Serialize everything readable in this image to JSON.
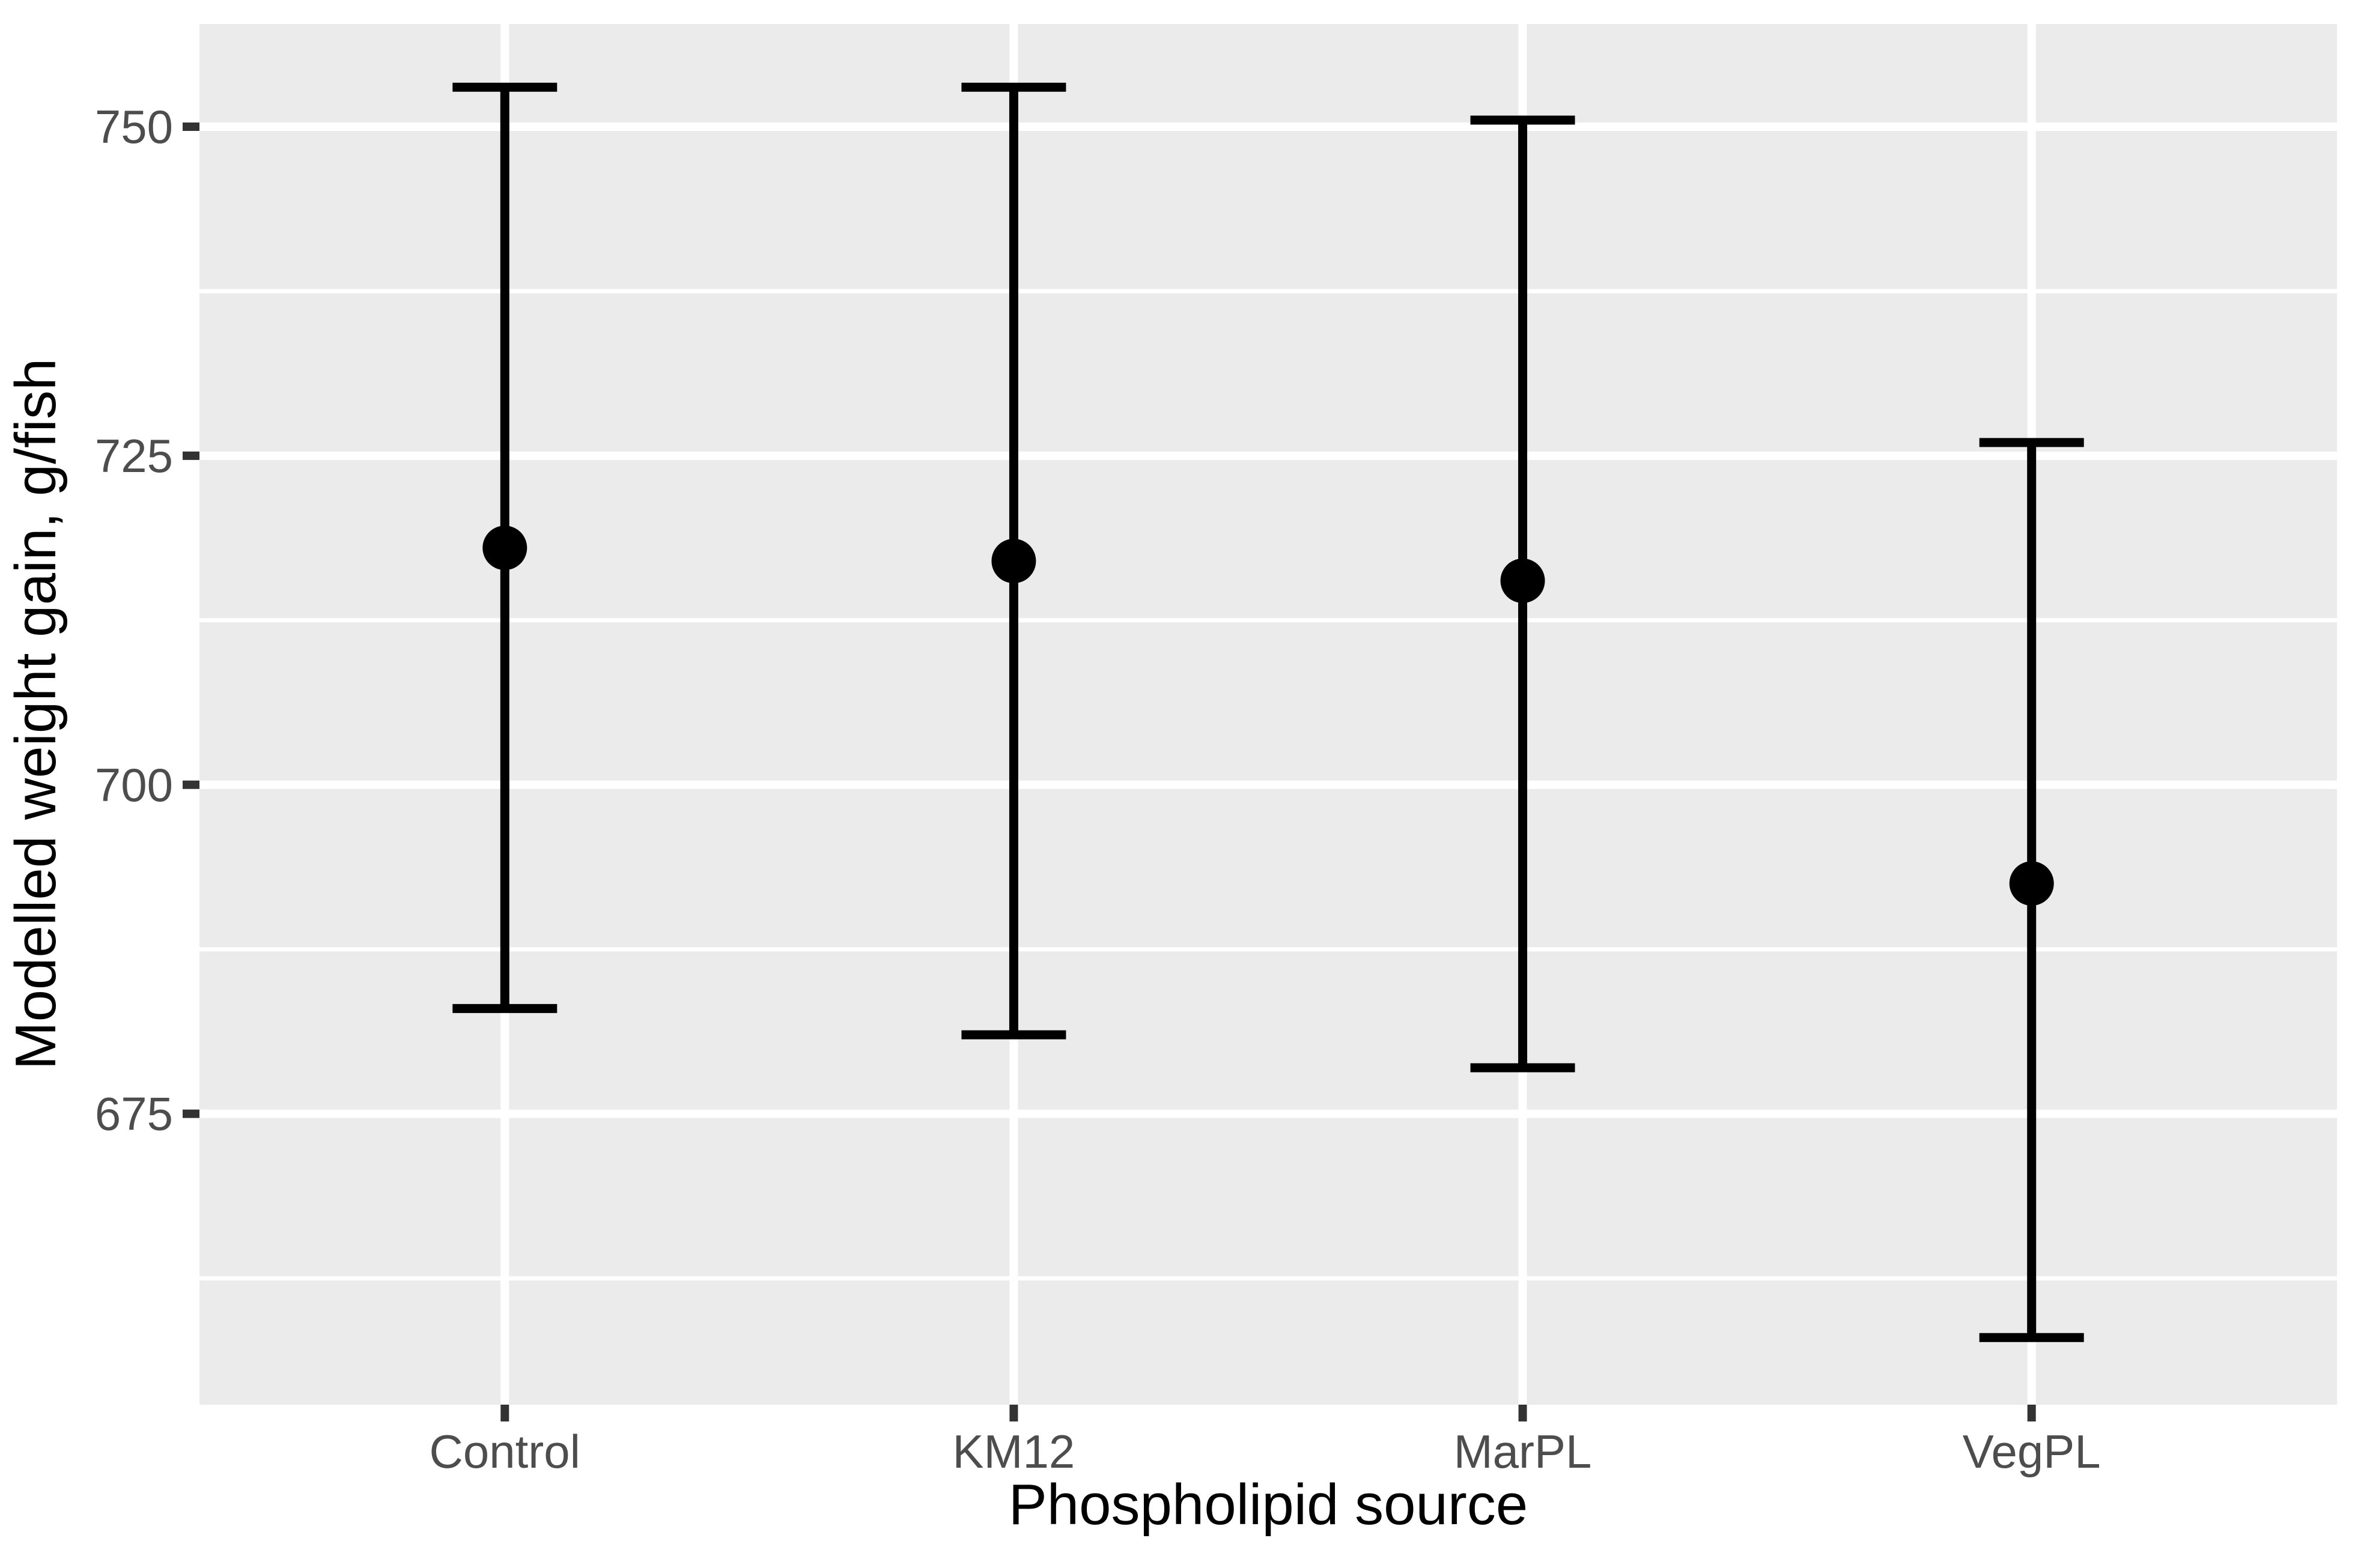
{
  "chart_data": {
    "type": "scatter",
    "subtype": "point-with-errorbar",
    "title": "",
    "xlabel": "Phospholipid source",
    "ylabel": "Modelled weight gain, g/fish",
    "categories": [
      "Control",
      "KM12",
      "MarPL",
      "VegPL"
    ],
    "series": [
      {
        "name": "Modelled weight gain, g/fish",
        "means": [
          718,
          717,
          715.5,
          692.5
        ],
        "ci_lower": [
          683,
          681,
          678.5,
          658
        ],
        "ci_upper": [
          753,
          753,
          750.5,
          726
        ]
      }
    ],
    "ylim": [
      652.9,
      757.8
    ],
    "yticks": [
      675,
      700,
      725,
      750
    ],
    "yticks_minor": [
      662.5,
      687.5,
      712.5,
      737.5
    ],
    "xgrid": "major vertical white line at each category",
    "grid": "on",
    "legend": "none",
    "marker": "filled-black-circle"
  },
  "style": {
    "page_bg": "#FFFFFF",
    "panel_bg": "#EBEBEB",
    "grid_color": "#FFFFFF",
    "geom_color": "#000000",
    "axis_text_color": "#4D4D4D",
    "axis_title_color": "#000000",
    "tick_mark_color": "#333333"
  }
}
